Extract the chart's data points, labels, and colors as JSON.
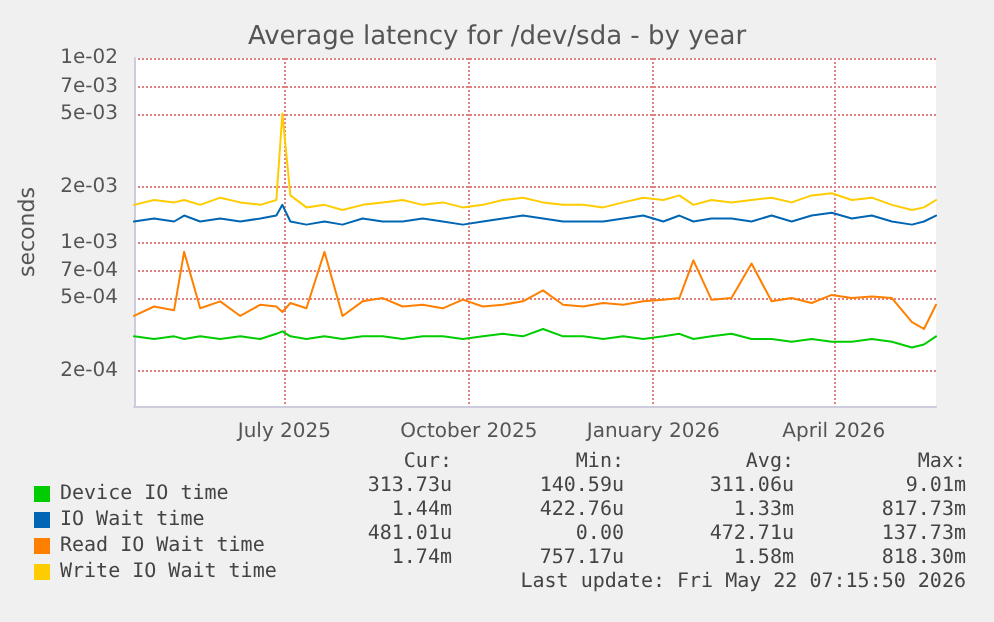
{
  "chart_data": {
    "type": "line",
    "title": "Average latency for /dev/sda - by year",
    "ylabel": "seconds",
    "x": [
      "2025-04-17",
      "2025-04-27",
      "2025-05-07",
      "2025-05-12",
      "2025-05-20",
      "2025-05-30",
      "2025-06-09",
      "2025-06-19",
      "2025-06-27",
      "2025-06-30",
      "2025-07-04",
      "2025-07-12",
      "2025-07-21",
      "2025-07-30",
      "2025-08-09",
      "2025-08-19",
      "2025-08-29",
      "2025-09-08",
      "2025-09-18",
      "2025-09-28",
      "2025-10-08",
      "2025-10-18",
      "2025-10-28",
      "2025-11-07",
      "2025-11-17",
      "2025-11-27",
      "2025-12-07",
      "2025-12-17",
      "2025-12-27",
      "2026-01-06",
      "2026-01-14",
      "2026-01-21",
      "2026-01-30",
      "2026-02-09",
      "2026-02-19",
      "2026-03-01",
      "2026-03-11",
      "2026-03-21",
      "2026-03-31",
      "2026-04-10",
      "2026-04-20",
      "2026-04-30",
      "2026-05-10",
      "2026-05-16",
      "2026-05-22"
    ],
    "series": [
      {
        "name": "Device IO time",
        "color": "#00cc00",
        "values": [
          0.00031,
          0.0003,
          0.00031,
          0.0003,
          0.00031,
          0.0003,
          0.00031,
          0.0003,
          0.00032,
          0.00033,
          0.00031,
          0.0003,
          0.00031,
          0.0003,
          0.00031,
          0.00031,
          0.0003,
          0.00031,
          0.00031,
          0.0003,
          0.00031,
          0.00032,
          0.00031,
          0.00034,
          0.00031,
          0.00031,
          0.0003,
          0.00031,
          0.0003,
          0.00031,
          0.00032,
          0.0003,
          0.00031,
          0.00032,
          0.0003,
          0.0003,
          0.00029,
          0.0003,
          0.00029,
          0.00029,
          0.0003,
          0.00029,
          0.00027,
          0.00028,
          0.00031
        ]
      },
      {
        "name": "IO Wait time",
        "color": "#0066b3",
        "values": [
          0.0013,
          0.00135,
          0.0013,
          0.0014,
          0.0013,
          0.00135,
          0.0013,
          0.00135,
          0.0014,
          0.0016,
          0.0013,
          0.00125,
          0.0013,
          0.00125,
          0.00135,
          0.0013,
          0.0013,
          0.00135,
          0.0013,
          0.00125,
          0.0013,
          0.00135,
          0.0014,
          0.00135,
          0.0013,
          0.0013,
          0.0013,
          0.00135,
          0.0014,
          0.0013,
          0.0014,
          0.0013,
          0.00135,
          0.00135,
          0.0013,
          0.0014,
          0.0013,
          0.0014,
          0.00145,
          0.00135,
          0.0014,
          0.0013,
          0.00125,
          0.0013,
          0.0014
        ]
      },
      {
        "name": "Read IO Wait time",
        "color": "#ff8000",
        "values": [
          0.0004,
          0.00045,
          0.00043,
          0.00089,
          0.00044,
          0.00048,
          0.0004,
          0.00046,
          0.00045,
          0.00042,
          0.00047,
          0.00044,
          0.00089,
          0.0004,
          0.00048,
          0.0005,
          0.00045,
          0.00046,
          0.00044,
          0.00049,
          0.00045,
          0.00046,
          0.00048,
          0.00055,
          0.00046,
          0.00045,
          0.00047,
          0.00046,
          0.00048,
          0.00049,
          0.0005,
          0.0008,
          0.00049,
          0.0005,
          0.00077,
          0.00048,
          0.0005,
          0.00047,
          0.00052,
          0.0005,
          0.00051,
          0.0005,
          0.00037,
          0.00034,
          0.00046
        ]
      },
      {
        "name": "Write IO Wait time",
        "color": "#ffcc00",
        "values": [
          0.0016,
          0.0017,
          0.00165,
          0.0017,
          0.0016,
          0.00175,
          0.00165,
          0.0016,
          0.0017,
          0.005,
          0.0018,
          0.00155,
          0.0016,
          0.0015,
          0.0016,
          0.00165,
          0.0017,
          0.0016,
          0.00165,
          0.00155,
          0.0016,
          0.0017,
          0.00175,
          0.00165,
          0.0016,
          0.0016,
          0.00155,
          0.00165,
          0.00175,
          0.0017,
          0.0018,
          0.0016,
          0.0017,
          0.00165,
          0.0017,
          0.00175,
          0.00165,
          0.0018,
          0.00185,
          0.0017,
          0.00175,
          0.0016,
          0.0015,
          0.00155,
          0.0017
        ]
      }
    ],
    "xlim": [
      "2025-04-17",
      "2026-05-22"
    ],
    "xticks": [
      {
        "value": "2025-07-01",
        "label": "July 2025"
      },
      {
        "value": "2025-10-01",
        "label": "October 2025"
      },
      {
        "value": "2026-01-01",
        "label": "January 2026"
      },
      {
        "value": "2026-04-01",
        "label": "April 2026"
      }
    ],
    "ylim": [
      0.00013,
      0.01
    ],
    "yticks": [
      {
        "value": 0.0002,
        "label": "2e-04"
      },
      {
        "value": 0.0005,
        "label": "5e-04"
      },
      {
        "value": 0.0007,
        "label": "7e-04"
      },
      {
        "value": 0.001,
        "label": "1e-03"
      },
      {
        "value": 0.002,
        "label": "2e-03"
      },
      {
        "value": 0.005,
        "label": "5e-03"
      },
      {
        "value": 0.007,
        "label": "7e-03"
      },
      {
        "value": 0.01,
        "label": "1e-02"
      }
    ],
    "log": "y",
    "grid": true,
    "legend": "bottom",
    "marker": "none",
    "line_style": "solid",
    "annotations": [
      "Cur:",
      "Min:",
      "Avg:",
      "Max:",
      "313.73u",
      "140.59u",
      "311.06u",
      "9.01m",
      "1.44m",
      "422.76u",
      "1.33m",
      "817.73m",
      "481.01u",
      "0.00",
      "472.71u",
      "137.73m",
      "1.74m",
      "757.17u",
      "1.58m",
      "818.30m",
      "Last update: Fri May 22 07:15:50 2026"
    ]
  }
}
